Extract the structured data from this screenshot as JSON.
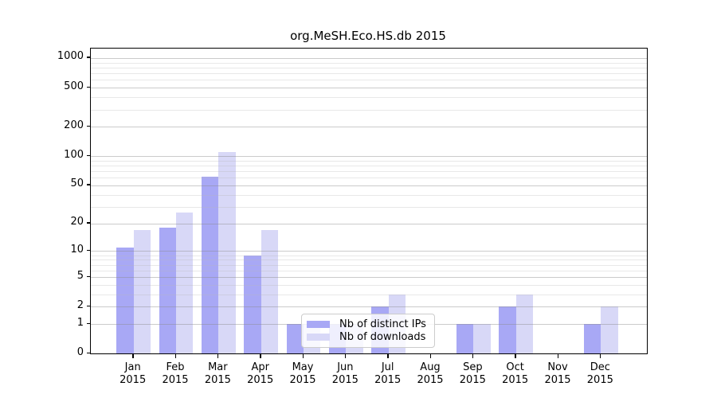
{
  "title": "org.MeSH.Eco.HS.db 2015",
  "chart_data": {
    "type": "bar",
    "title": "org.MeSH.Eco.HS.db 2015",
    "categories": [
      "Jan",
      "Feb",
      "Mar",
      "Apr",
      "May",
      "Jun",
      "Jul",
      "Aug",
      "Sep",
      "Oct",
      "Nov",
      "Dec"
    ],
    "year_label": "2015",
    "series": [
      {
        "name": "Nb of distinct IPs",
        "color": "#a8a8f5",
        "values": [
          11,
          18,
          62,
          9,
          1,
          1,
          2,
          0,
          1,
          2,
          0,
          1
        ]
      },
      {
        "name": "Nb of downloads",
        "color": "#d8d8f7",
        "values": [
          17,
          26,
          110,
          17,
          1,
          1,
          3,
          0,
          1,
          3,
          0,
          2
        ]
      }
    ],
    "yscale": "log1p",
    "ylim": [
      0,
      1250
    ],
    "y_major_ticks": [
      1000,
      500,
      200,
      100,
      50,
      20,
      10,
      5,
      2,
      1,
      0
    ],
    "y_minor_gridlines": [
      3,
      4,
      6,
      7,
      8,
      9,
      30,
      40,
      60,
      70,
      80,
      90,
      300,
      400,
      600,
      700,
      800,
      900
    ],
    "grid": true,
    "legend_position": "lower-center",
    "background_color": "#ffffff",
    "spine_color": "#000000"
  }
}
